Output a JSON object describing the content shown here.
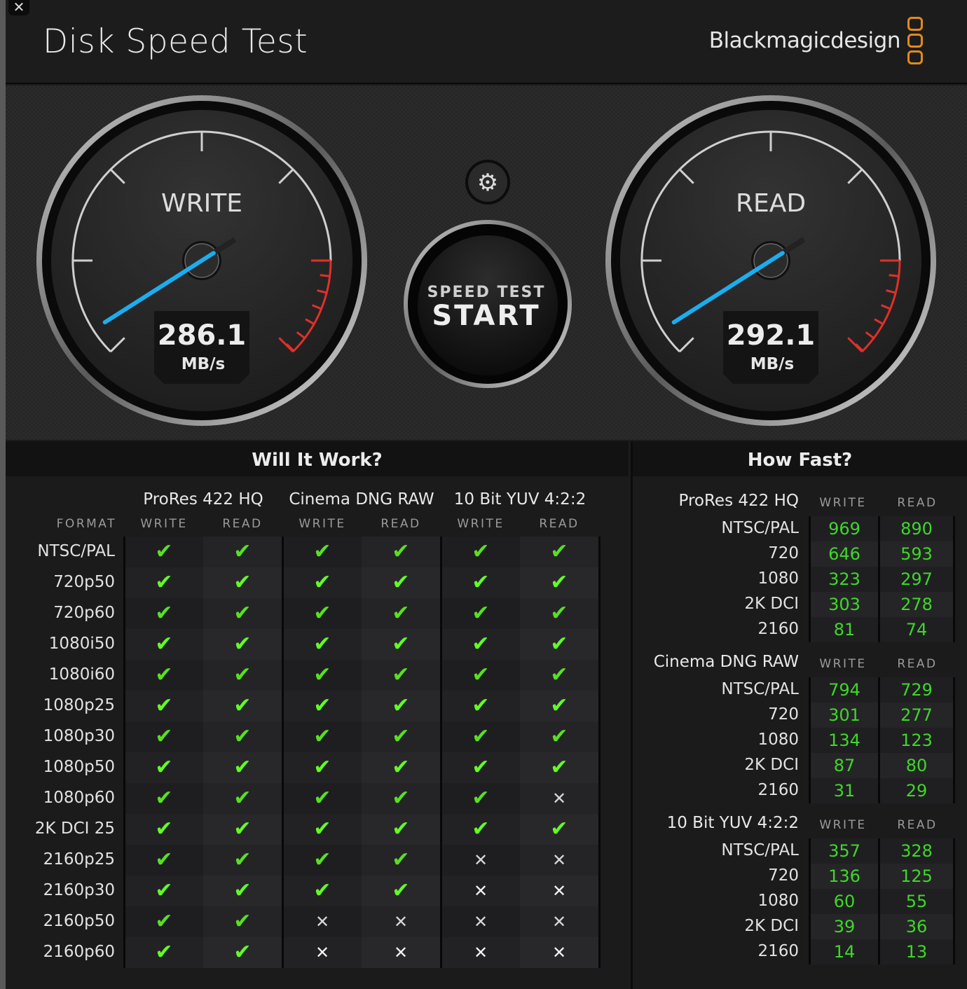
{
  "window": {
    "title": "Disk Speed Test",
    "brand": "Blackmagicdesign",
    "close_icon": "close-icon"
  },
  "gauges": {
    "write": {
      "label": "WRITE",
      "value": "286.1",
      "unit": "MB/s"
    },
    "read": {
      "label": "READ",
      "value": "292.1",
      "unit": "MB/s"
    }
  },
  "start_button": {
    "line1": "SPEED TEST",
    "line2": "START"
  },
  "settings_icon": "gear-icon",
  "colors": {
    "accent_needle": "#1aaef0",
    "ok": "#58e020",
    "value": "#3ed728",
    "redline": "#e0302a",
    "logo": "#e08a1e"
  },
  "will_it_work": {
    "title": "Will It Work?",
    "format_label": "FORMAT",
    "codecs": [
      "ProRes 422 HQ",
      "Cinema DNG RAW",
      "10 Bit YUV 4:2:2"
    ],
    "write_label": "WRITE",
    "read_label": "READ",
    "rows": [
      {
        "format": "NTSC/PAL",
        "results": [
          1,
          1,
          1,
          1,
          1,
          1
        ]
      },
      {
        "format": "720p50",
        "results": [
          1,
          1,
          1,
          1,
          1,
          1
        ]
      },
      {
        "format": "720p60",
        "results": [
          1,
          1,
          1,
          1,
          1,
          1
        ]
      },
      {
        "format": "1080i50",
        "results": [
          1,
          1,
          1,
          1,
          1,
          1
        ]
      },
      {
        "format": "1080i60",
        "results": [
          1,
          1,
          1,
          1,
          1,
          1
        ]
      },
      {
        "format": "1080p25",
        "results": [
          1,
          1,
          1,
          1,
          1,
          1
        ]
      },
      {
        "format": "1080p30",
        "results": [
          1,
          1,
          1,
          1,
          1,
          1
        ]
      },
      {
        "format": "1080p50",
        "results": [
          1,
          1,
          1,
          1,
          1,
          1
        ]
      },
      {
        "format": "1080p60",
        "results": [
          1,
          1,
          1,
          1,
          1,
          0
        ]
      },
      {
        "format": "2K DCI 25",
        "results": [
          1,
          1,
          1,
          1,
          1,
          1
        ]
      },
      {
        "format": "2160p25",
        "results": [
          1,
          1,
          1,
          1,
          0,
          0
        ]
      },
      {
        "format": "2160p30",
        "results": [
          1,
          1,
          1,
          1,
          0,
          0
        ]
      },
      {
        "format": "2160p50",
        "results": [
          1,
          1,
          0,
          0,
          0,
          0
        ]
      },
      {
        "format": "2160p60",
        "results": [
          1,
          1,
          0,
          0,
          0,
          0
        ]
      }
    ],
    "check_symbol": "✔",
    "cross_symbol": "✕"
  },
  "how_fast": {
    "title": "How Fast?",
    "write_label": "WRITE",
    "read_label": "READ",
    "groups": [
      {
        "codec": "ProRes 422 HQ",
        "rows": [
          {
            "format": "NTSC/PAL",
            "write": "969",
            "read": "890"
          },
          {
            "format": "720",
            "write": "646",
            "read": "593"
          },
          {
            "format": "1080",
            "write": "323",
            "read": "297"
          },
          {
            "format": "2K DCI",
            "write": "303",
            "read": "278"
          },
          {
            "format": "2160",
            "write": "81",
            "read": "74"
          }
        ]
      },
      {
        "codec": "Cinema DNG RAW",
        "rows": [
          {
            "format": "NTSC/PAL",
            "write": "794",
            "read": "729"
          },
          {
            "format": "720",
            "write": "301",
            "read": "277"
          },
          {
            "format": "1080",
            "write": "134",
            "read": "123"
          },
          {
            "format": "2K DCI",
            "write": "87",
            "read": "80"
          },
          {
            "format": "2160",
            "write": "31",
            "read": "29"
          }
        ]
      },
      {
        "codec": "10 Bit YUV 4:2:2",
        "rows": [
          {
            "format": "NTSC/PAL",
            "write": "357",
            "read": "328"
          },
          {
            "format": "720",
            "write": "136",
            "read": "125"
          },
          {
            "format": "1080",
            "write": "60",
            "read": "55"
          },
          {
            "format": "2K DCI",
            "write": "39",
            "read": "36"
          },
          {
            "format": "2160",
            "write": "14",
            "read": "13"
          }
        ]
      }
    ]
  }
}
